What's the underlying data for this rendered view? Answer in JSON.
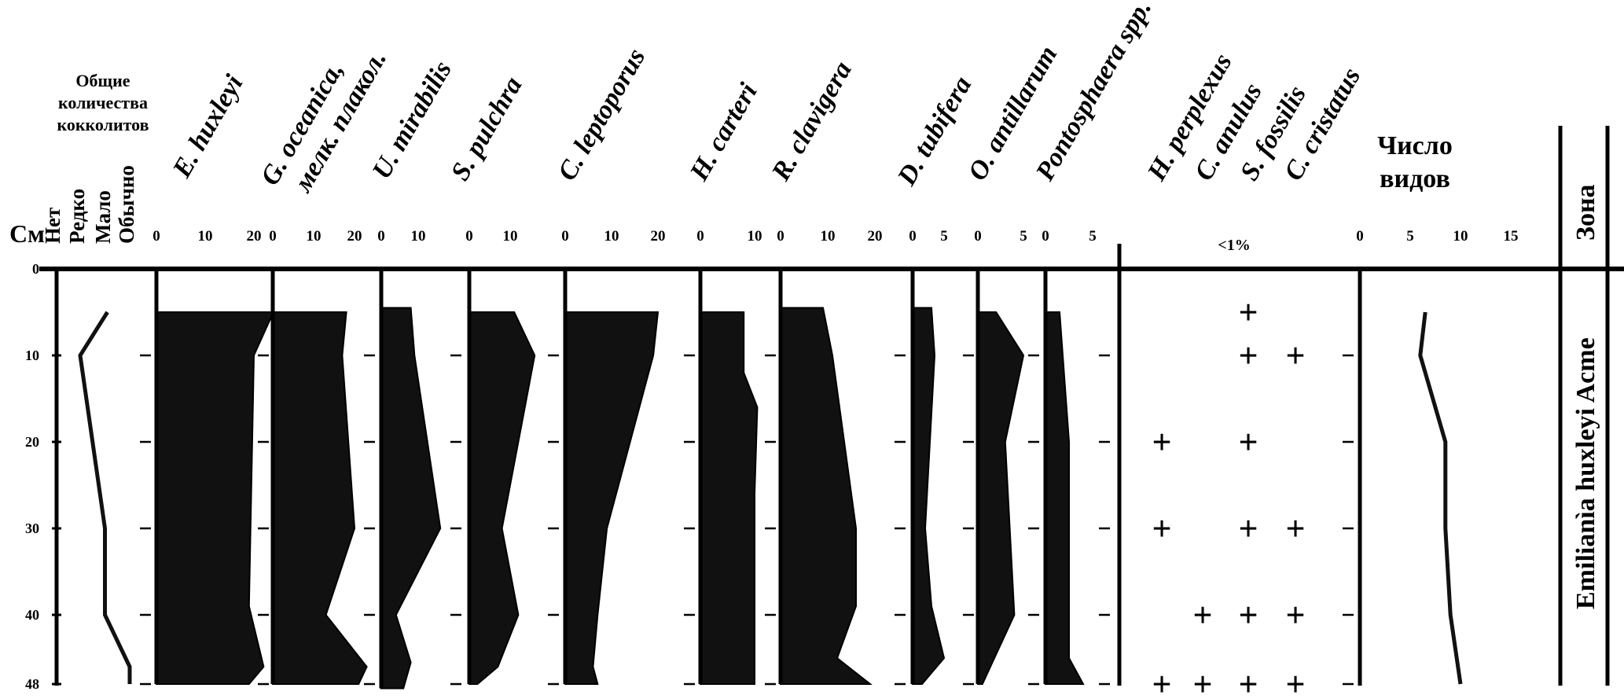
{
  "chart_data": {
    "type": "area",
    "depth_label": "См",
    "depth_ticks": [
      "0",
      "10",
      "20",
      "30",
      "40",
      "48"
    ],
    "depth_range": [
      0,
      48
    ],
    "abundance": {
      "header": [
        "Общие",
        "количества",
        "кокколитов"
      ],
      "levels": [
        "Нет",
        "Редко",
        "Мало",
        "Обычно"
      ],
      "points": [
        {
          "depth": 5,
          "level": 2.1
        },
        {
          "depth": 10,
          "level": 1.0
        },
        {
          "depth": 30,
          "level": 2.0
        },
        {
          "depth": 40,
          "level": 2.0
        },
        {
          "depth": 46,
          "level": 3.0
        },
        {
          "depth": 48,
          "level": 3.0
        }
      ]
    },
    "taxa": [
      {
        "name": "E. huxleyi",
        "ticks": [
          "0",
          "10",
          "20"
        ],
        "xmax": 20,
        "points": [
          {
            "depth": 5,
            "value": 24
          },
          {
            "depth": 10,
            "value": 20
          },
          {
            "depth": 39,
            "value": 19
          },
          {
            "depth": 46,
            "value": 22
          },
          {
            "depth": 48,
            "value": 19
          }
        ]
      },
      {
        "name": "G. oceanica, мелк. плакол.",
        "lines": [
          "G. oceanica,",
          "мелк. плакол."
        ],
        "ticks": [
          "0",
          "10",
          "20"
        ],
        "xmax": 20,
        "points": [
          {
            "depth": 5,
            "value": 18
          },
          {
            "depth": 10,
            "value": 17
          },
          {
            "depth": 30,
            "value": 20
          },
          {
            "depth": 40,
            "value": 13
          },
          {
            "depth": 46,
            "value": 23
          },
          {
            "depth": 48,
            "value": 21
          }
        ]
      },
      {
        "name": "U. mirabilis",
        "ticks": [
          "0",
          "10"
        ],
        "xmax": 10,
        "points": [
          {
            "depth": 4.5,
            "value": 8
          },
          {
            "depth": 10,
            "value": 9
          },
          {
            "depth": 30,
            "value": 16
          },
          {
            "depth": 40,
            "value": 4
          },
          {
            "depth": 45.5,
            "value": 8
          },
          {
            "depth": 48.5,
            "value": 6
          }
        ]
      },
      {
        "name": "S. pulchra",
        "ticks": [
          "0",
          "10"
        ],
        "xmax": 10,
        "points": [
          {
            "depth": 5,
            "value": 11
          },
          {
            "depth": 10,
            "value": 16
          },
          {
            "depth": 30,
            "value": 8
          },
          {
            "depth": 40,
            "value": 12
          },
          {
            "depth": 46,
            "value": 7
          },
          {
            "depth": 48,
            "value": 2
          }
        ]
      },
      {
        "name": "C. leptoporus",
        "ticks": [
          "0",
          "10",
          "20"
        ],
        "xmax": 20,
        "points": [
          {
            "depth": 5,
            "value": 20
          },
          {
            "depth": 10,
            "value": 19
          },
          {
            "depth": 30,
            "value": 9
          },
          {
            "depth": 40,
            "value": 7
          },
          {
            "depth": 46,
            "value": 6
          },
          {
            "depth": 48,
            "value": 7
          }
        ]
      },
      {
        "name": "H. carteri",
        "ticks": [
          "0",
          "10"
        ],
        "xmax": 10,
        "points": [
          {
            "depth": 5,
            "value": 8
          },
          {
            "depth": 12,
            "value": 8
          },
          {
            "depth": 16,
            "value": 10.5
          },
          {
            "depth": 26,
            "value": 10
          },
          {
            "depth": 48,
            "value": 10
          }
        ]
      },
      {
        "name": "R. clavigera",
        "ticks": [
          "0",
          "10",
          "20"
        ],
        "xmax": 20,
        "points": [
          {
            "depth": 4.5,
            "value": 9
          },
          {
            "depth": 10,
            "value": 11
          },
          {
            "depth": 30,
            "value": 16
          },
          {
            "depth": 39,
            "value": 16
          },
          {
            "depth": 45,
            "value": 12
          },
          {
            "depth": 48,
            "value": 19
          }
        ]
      },
      {
        "name": "D. tubifera",
        "ticks": [
          "0",
          "5"
        ],
        "xmax": 5,
        "points": [
          {
            "depth": 4.5,
            "value": 3
          },
          {
            "depth": 10,
            "value": 3.5
          },
          {
            "depth": 30,
            "value": 2
          },
          {
            "depth": 39,
            "value": 3
          },
          {
            "depth": 45,
            "value": 5
          },
          {
            "depth": 48,
            "value": 1.5
          }
        ]
      },
      {
        "name": "O. antillarum",
        "ticks": [
          "0",
          "5"
        ],
        "xmax": 5,
        "points": [
          {
            "depth": 5,
            "value": 2
          },
          {
            "depth": 10,
            "value": 5
          },
          {
            "depth": 20,
            "value": 3
          },
          {
            "depth": 40,
            "value": 4
          },
          {
            "depth": 48,
            "value": 0.5
          }
        ]
      },
      {
        "name": "Pontosphaera spp.",
        "ticks": [
          "0",
          "5"
        ],
        "xmax": 5,
        "points": [
          {
            "depth": 5,
            "value": 1.5
          },
          {
            "depth": 20,
            "value": 2.5
          },
          {
            "depth": 45,
            "value": 2.5
          },
          {
            "depth": 48,
            "value": 4
          }
        ]
      }
    ],
    "rare_taxa": {
      "label": "<1%",
      "names": [
        "H. perplexus",
        "C. anulus",
        "S. fossilis",
        "C. cristatus"
      ],
      "symbol": "+",
      "occurrences": [
        {
          "depth": 5,
          "taxa": [
            "S. fossilis"
          ]
        },
        {
          "depth": 10,
          "taxa": [
            "S. fossilis",
            "C. cristatus"
          ]
        },
        {
          "depth": 20,
          "taxa": [
            "H. perplexus",
            "S. fossilis"
          ]
        },
        {
          "depth": 30,
          "taxa": [
            "H. perplexus",
            "S. fossilis",
            "C. cristatus"
          ]
        },
        {
          "depth": 40,
          "taxa": [
            "C. anulus",
            "S. fossilis",
            "C. cristatus"
          ]
        },
        {
          "depth": 48,
          "taxa": [
            "H. perplexus",
            "C. anulus",
            "S. fossilis",
            "C. cristatus"
          ]
        }
      ]
    },
    "species_count": {
      "title": [
        "Число",
        "видов"
      ],
      "ticks": [
        "0",
        "5",
        "10",
        "15"
      ],
      "xmax": 15,
      "points": [
        {
          "depth": 5,
          "value": 6.5
        },
        {
          "depth": 10,
          "value": 6
        },
        {
          "depth": 20,
          "value": 8.5
        },
        {
          "depth": 30,
          "value": 8.5
        },
        {
          "depth": 40,
          "value": 9
        },
        {
          "depth": 48,
          "value": 10
        }
      ]
    },
    "zone": {
      "header": "Зона",
      "name": "Emilianìa huxleyi Acme"
    }
  }
}
